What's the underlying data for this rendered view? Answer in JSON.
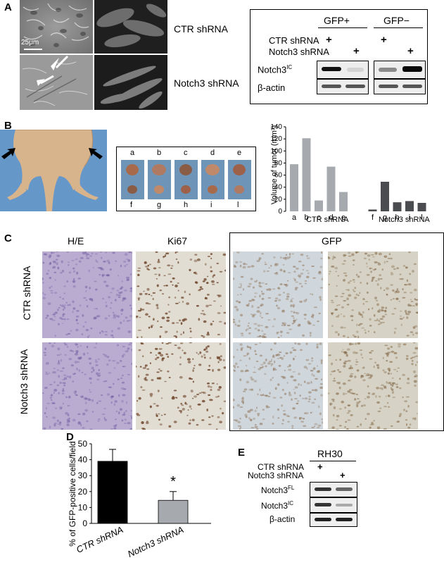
{
  "panels": {
    "A": {
      "letter": "A",
      "scale_bar": "25μm",
      "row_labels": [
        "CTR shRNA",
        "Notch3 shRNA"
      ],
      "blot": {
        "groups": [
          "GFP+",
          "GFP−"
        ],
        "conditions": [
          "CTR shRNA",
          "Notch3 shRNA"
        ],
        "plus": "+",
        "rows": [
          {
            "name": "Notch3",
            "sup": "IC"
          },
          {
            "name": "β-actin",
            "sup": ""
          }
        ]
      }
    },
    "B": {
      "letter": "B",
      "tumor_top_labels": [
        "a",
        "b",
        "c",
        "d",
        "e"
      ],
      "tumor_bottom_labels": [
        "f",
        "g",
        "h",
        "i",
        "l"
      ]
    },
    "C": {
      "letter": "C",
      "column_labels": [
        "H/E",
        "Ki67",
        "GFP"
      ],
      "row_labels": [
        "CTR shRNA",
        "Notch3 shRNA"
      ]
    },
    "D": {
      "letter": "D",
      "star": "*"
    },
    "E": {
      "letter": "E",
      "cell_line": "RH30",
      "conditions": [
        "CTR shRNA",
        "Notch3 shRNA"
      ],
      "plus": "+",
      "rows": [
        {
          "name": "Notch3",
          "sup": "FL"
        },
        {
          "name": "Notch3",
          "sup": "IC"
        },
        {
          "name": "β-actin",
          "sup": ""
        }
      ]
    }
  },
  "chart_data": [
    {
      "type": "bar",
      "panel": "B",
      "ylabel": "Volume of tumor (mm³)",
      "ylim": [
        0,
        140
      ],
      "yticks": [
        0,
        20,
        40,
        60,
        80,
        100,
        120,
        140
      ],
      "categories": [
        "a",
        "b",
        "c",
        "d",
        "e",
        "f",
        "g",
        "h",
        "i",
        "l"
      ],
      "groups": [
        {
          "name": "CTR shRNA",
          "categories": [
            "a",
            "b",
            "c",
            "d",
            "e"
          ]
        },
        {
          "name": "Notch3 shRNA",
          "categories": [
            "f",
            "g",
            "h",
            "i",
            "l"
          ]
        }
      ],
      "values": [
        78,
        121,
        18,
        74,
        32,
        3,
        49,
        15,
        17,
        14
      ],
      "colors": {
        "CTR shRNA": "#a6a9ad",
        "Notch3 shRNA": "#4a4c50"
      }
    },
    {
      "type": "bar",
      "panel": "D",
      "ylabel": "% of GFP-positive cells/field",
      "ylim": [
        0,
        50
      ],
      "yticks": [
        0,
        10,
        20,
        30,
        40,
        50
      ],
      "categories": [
        "CTR shRNA",
        "Notch3 shRNA"
      ],
      "values": [
        39,
        14.5
      ],
      "error": [
        7.5,
        5.5
      ],
      "colors": [
        "#000000",
        "#a6a9ad"
      ]
    }
  ]
}
